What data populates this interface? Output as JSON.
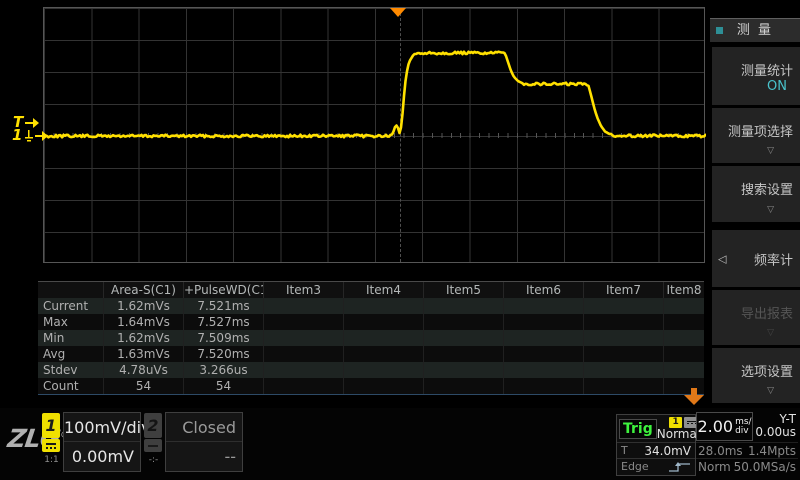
{
  "waveform_panel": {
    "trigger_level_label": "T",
    "channel_marker": "1",
    "trace_color": "#ffe000",
    "trigger_color": "#ff8a00",
    "waveform": {
      "points": [
        [
          0,
          128
        ],
        [
          347,
          128
        ],
        [
          349,
          125
        ],
        [
          351,
          119
        ],
        [
          353,
          117
        ],
        [
          355,
          123
        ],
        [
          356,
          127
        ],
        [
          358,
          112
        ],
        [
          360,
          88
        ],
        [
          362,
          68
        ],
        [
          365,
          54
        ],
        [
          369,
          47.5
        ],
        [
          374,
          45.8
        ],
        [
          380,
          45
        ],
        [
          461,
          45
        ],
        [
          464,
          54
        ],
        [
          467,
          63
        ],
        [
          470,
          69
        ],
        [
          474,
          73
        ],
        [
          479,
          75.5
        ],
        [
          485,
          76
        ],
        [
          544,
          76
        ],
        [
          547,
          87
        ],
        [
          550,
          99
        ],
        [
          553,
          109
        ],
        [
          557,
          118
        ],
        [
          561,
          123.5
        ],
        [
          566,
          126.3
        ],
        [
          572,
          127.6
        ],
        [
          662,
          128
        ]
      ],
      "noise_amplitude": 1.3
    }
  },
  "measurement_table": {
    "columns": [
      "",
      "Area-S(C1)",
      "+PulseWD(C1)",
      "Item3",
      "Item4",
      "Item5",
      "Item6",
      "Item7",
      "Item8"
    ],
    "rows": [
      {
        "label": "Current",
        "values": [
          "1.62mVs",
          "7.521ms",
          "",
          "",
          "",
          "",
          "",
          ""
        ]
      },
      {
        "label": "Max",
        "values": [
          "1.64mVs",
          "7.527ms",
          "",
          "",
          "",
          "",
          "",
          ""
        ]
      },
      {
        "label": "Min",
        "values": [
          "1.62mVs",
          "7.509ms",
          "",
          "",
          "",
          "",
          "",
          ""
        ]
      },
      {
        "label": "Avg",
        "values": [
          "1.63mVs",
          "7.520ms",
          "",
          "",
          "",
          "",
          "",
          ""
        ]
      },
      {
        "label": "Stdev",
        "values": [
          "4.78uVs",
          "3.266us",
          "",
          "",
          "",
          "",
          "",
          ""
        ]
      },
      {
        "label": "Count",
        "values": [
          "54",
          "54",
          "",
          "",
          "",
          "",
          "",
          ""
        ]
      }
    ]
  },
  "sidebar": {
    "title": "测 量",
    "items": [
      {
        "label": "测量统计",
        "value": "ON"
      },
      {
        "label": "测量项选择",
        "arrow": "▽"
      },
      {
        "label": "搜索设置",
        "arrow": "▽"
      },
      {
        "label": "频率计",
        "back": "◁"
      },
      {
        "label": "导出报表",
        "arrow": "▽"
      },
      {
        "label": "选项设置",
        "arrow": "▽"
      }
    ]
  },
  "status_bar": {
    "logo": "ZLG",
    "channel1": {
      "badge": "1",
      "probe": "1:1",
      "scale": "100mV/div",
      "offset": "0.00mV"
    },
    "channel2": {
      "badge": "2",
      "probe": "-:-",
      "scale": "Closed",
      "offset": "--"
    },
    "trigger": {
      "label": "Trig",
      "source": "1",
      "mode": "Normal",
      "level_label": "T",
      "level": "34.0mV",
      "type": "Edge"
    },
    "timebase": {
      "scale": "2.00",
      "unit_top": "ms/",
      "unit_bottom": "div",
      "mode": "Y-T",
      "delay": "0.00us",
      "record_time": "28.0ms",
      "record_points": "1.4Mpts",
      "acq_mode": "Norm",
      "sample_rate": "50.0MSa/s"
    }
  }
}
